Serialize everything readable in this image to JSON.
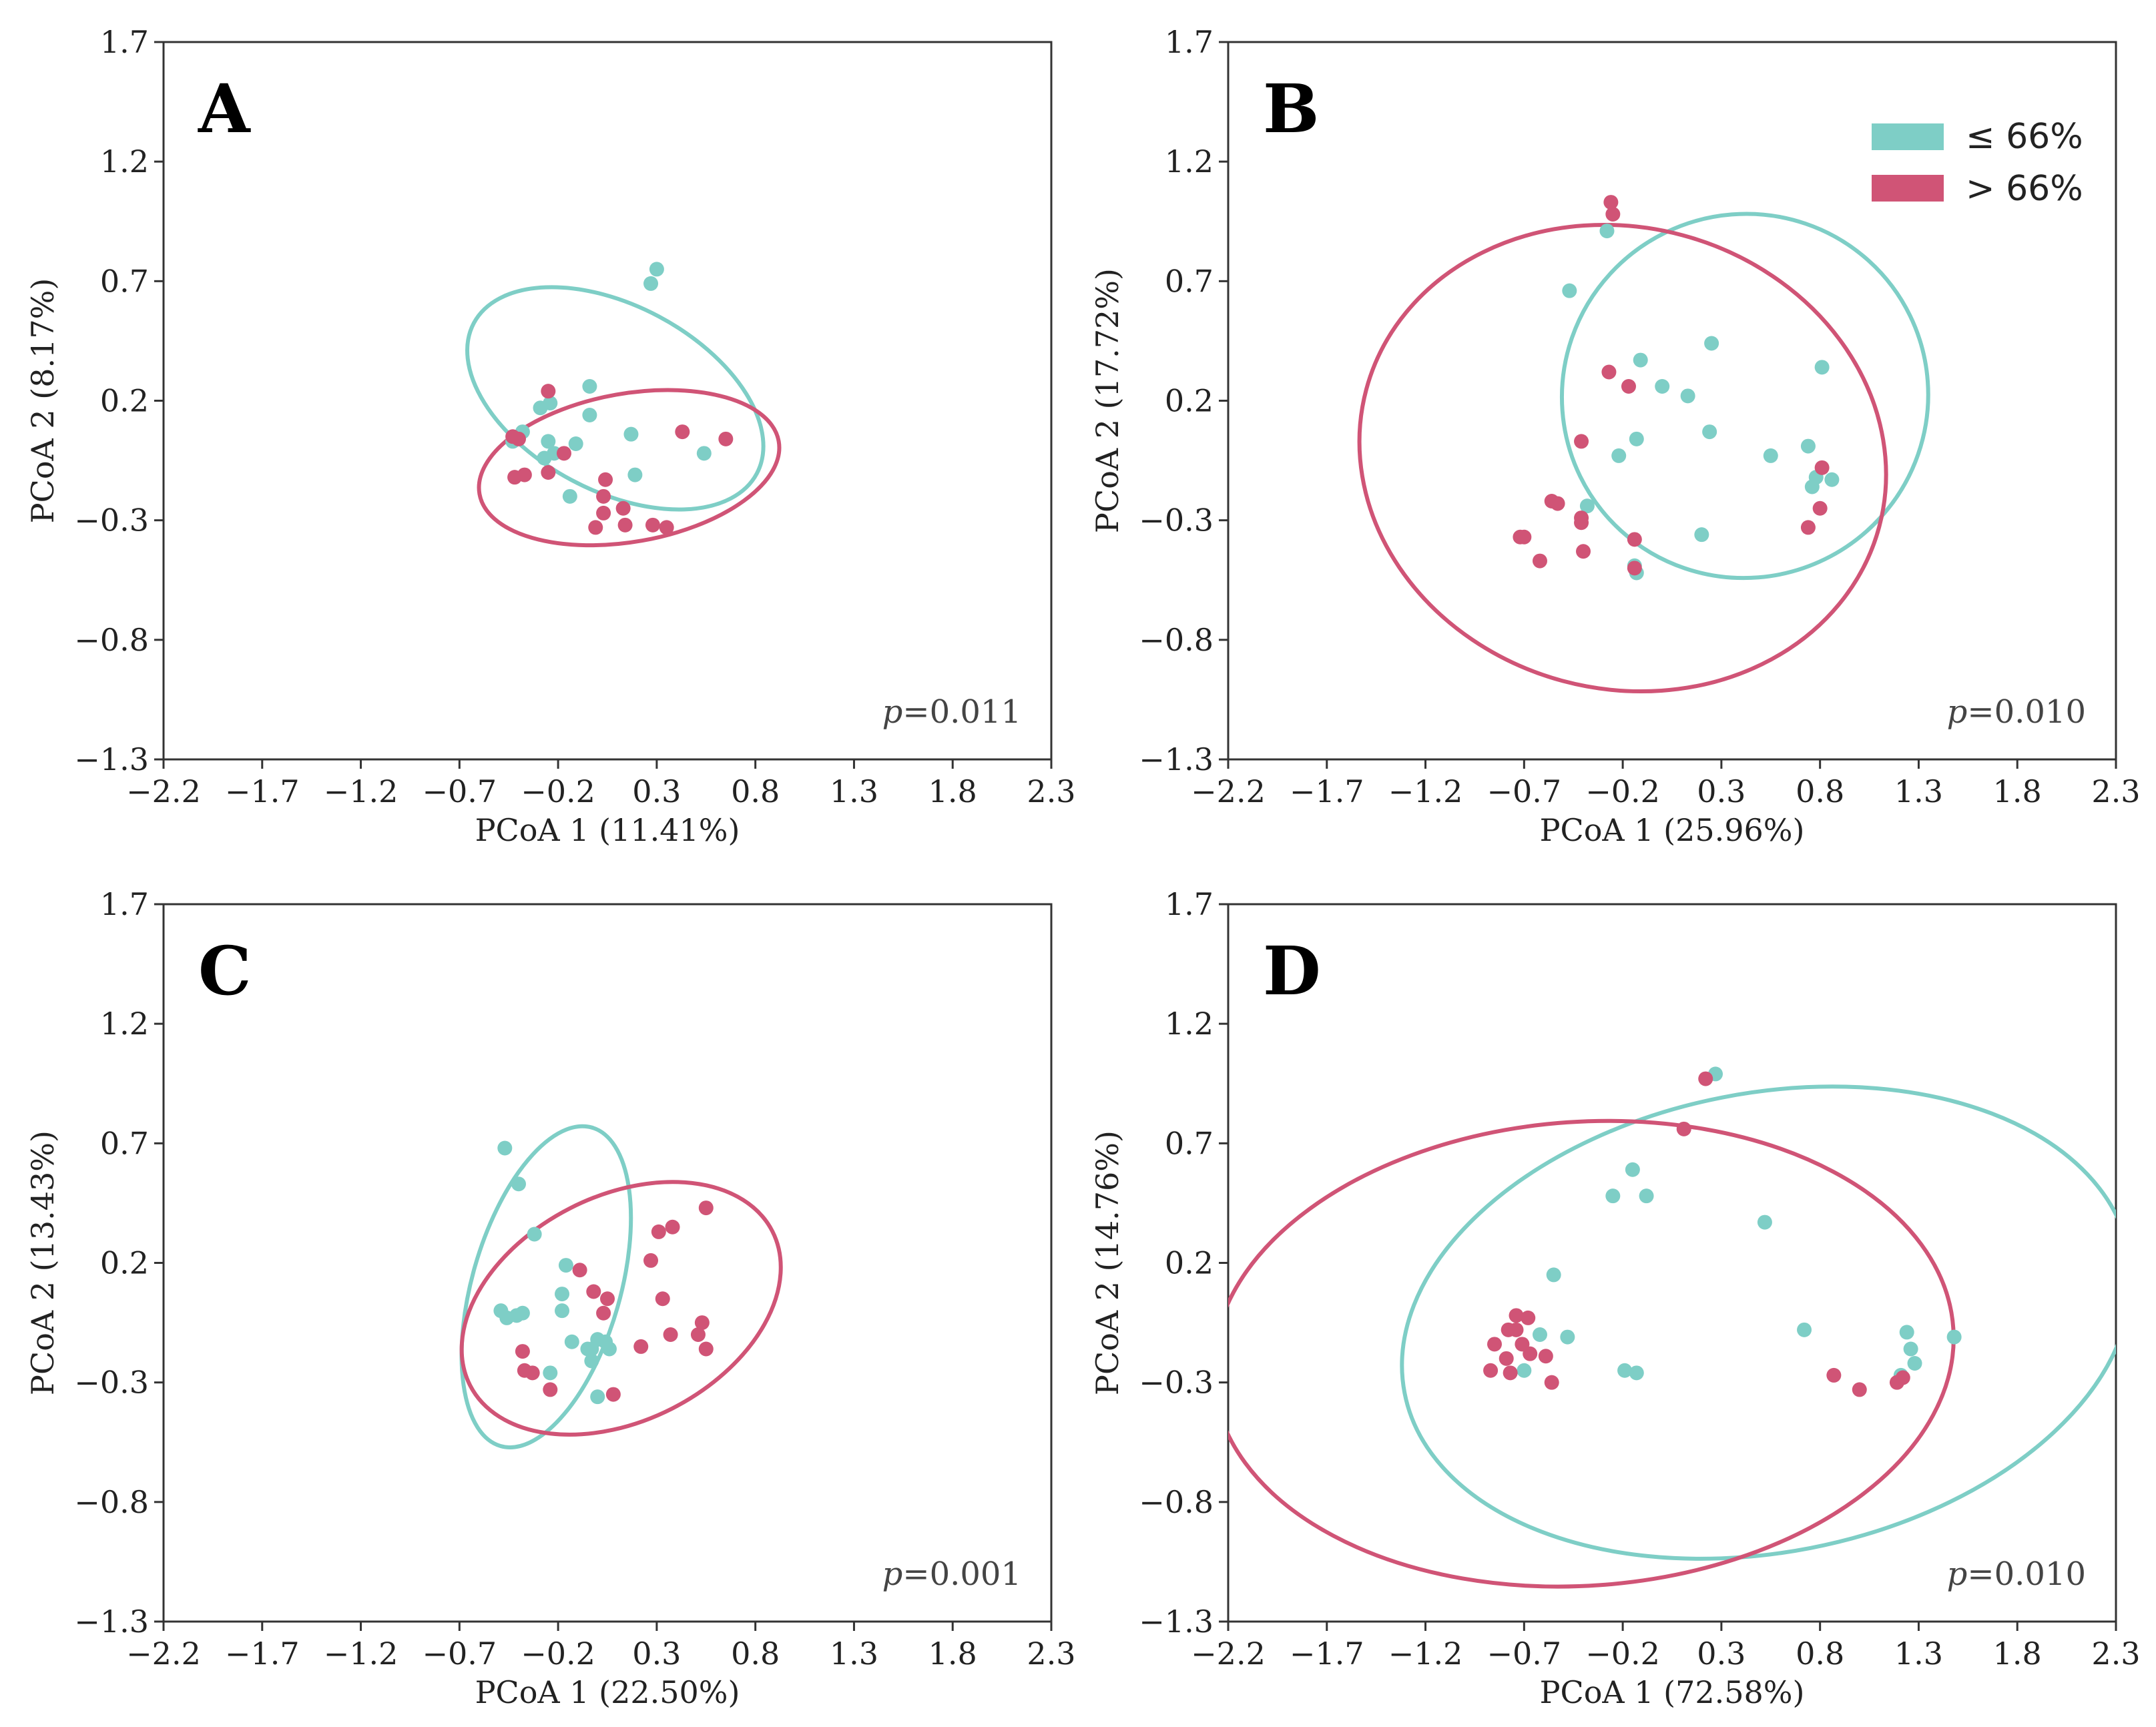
{
  "legend": [
    {
      "label": "≤ 66%",
      "color": "#7ECEC6"
    },
    {
      "label": "> 66%",
      "color": "#D05476"
    }
  ],
  "chart_data": [
    {
      "type": "scatter",
      "panel": "A",
      "xlabel": "PCoA 1 (11.41%)",
      "ylabel": "PCoA 2 (8.17%)",
      "xlim": [
        -2.2,
        2.3
      ],
      "ylim": [
        -1.3,
        1.7
      ],
      "xticks": [
        -2.2,
        -1.7,
        -1.2,
        -0.7,
        -0.2,
        0.3,
        0.8,
        1.3,
        1.8,
        2.3
      ],
      "yticks": [
        -1.3,
        -0.8,
        -0.3,
        0.2,
        0.7,
        1.2,
        1.7
      ],
      "annotation": "p=0.011",
      "series": [
        {
          "name": "≤ 66%",
          "points": [
            [
              0.3,
              0.75
            ],
            [
              0.27,
              0.69
            ],
            [
              -0.04,
              0.26
            ],
            [
              -0.29,
              0.17
            ],
            [
              -0.24,
              0.19
            ],
            [
              -0.04,
              0.14
            ],
            [
              -0.38,
              0.07
            ],
            [
              -0.43,
              0.03
            ],
            [
              -0.25,
              0.03
            ],
            [
              -0.11,
              0.02
            ],
            [
              0.17,
              0.06
            ],
            [
              0.54,
              -0.02
            ],
            [
              -0.27,
              -0.04
            ],
            [
              0.19,
              -0.11
            ],
            [
              -0.14,
              -0.2
            ],
            [
              -0.22,
              -0.02
            ]
          ],
          "ellipse": {
            "cx": 0.09,
            "cy": 0.21,
            "rx": 0.47,
            "ry": 0.67,
            "angle_deg": 62
          }
        },
        {
          "name": "> 66%",
          "points": [
            [
              -0.25,
              0.24
            ],
            [
              -0.43,
              0.05
            ],
            [
              -0.4,
              0.04
            ],
            [
              -0.17,
              -0.02
            ],
            [
              0.43,
              0.07
            ],
            [
              0.65,
              0.04
            ],
            [
              -0.42,
              -0.12
            ],
            [
              -0.37,
              -0.11
            ],
            [
              -0.25,
              -0.1
            ],
            [
              0.04,
              -0.13
            ],
            [
              0.03,
              -0.2
            ],
            [
              0.13,
              -0.25
            ],
            [
              0.03,
              -0.27
            ],
            [
              -0.01,
              -0.33
            ],
            [
              0.14,
              -0.32
            ],
            [
              0.28,
              -0.32
            ],
            [
              0.35,
              -0.33
            ]
          ],
          "ellipse": {
            "cx": 0.16,
            "cy": -0.08,
            "rx": 0.77,
            "ry": 0.31,
            "angle_deg": 10
          }
        }
      ]
    },
    {
      "type": "scatter",
      "panel": "B",
      "xlabel": "PCoA 1 (25.96%)",
      "ylabel": "PCoA 2 (17.72%)",
      "xlim": [
        -2.2,
        2.3
      ],
      "ylim": [
        -1.3,
        1.7
      ],
      "xticks": [
        -2.2,
        -1.7,
        -1.2,
        -0.7,
        -0.2,
        0.3,
        0.8,
        1.3,
        1.8,
        2.3
      ],
      "yticks": [
        -1.3,
        -0.8,
        -0.3,
        0.2,
        0.7,
        1.2,
        1.7
      ],
      "annotation": "p=0.010",
      "series": [
        {
          "name": "≤ 66%",
          "points": [
            [
              -0.28,
              0.91
            ],
            [
              -0.47,
              0.66
            ],
            [
              0.25,
              0.44
            ],
            [
              -0.11,
              0.37
            ],
            [
              0.0,
              0.26
            ],
            [
              0.13,
              0.22
            ],
            [
              0.81,
              0.34
            ],
            [
              -0.13,
              0.04
            ],
            [
              0.24,
              0.07
            ],
            [
              -0.22,
              -0.03
            ],
            [
              0.55,
              -0.03
            ],
            [
              0.74,
              0.01
            ],
            [
              0.78,
              -0.12
            ],
            [
              0.86,
              -0.13
            ],
            [
              0.76,
              -0.16
            ],
            [
              -0.38,
              -0.24
            ],
            [
              0.2,
              -0.36
            ],
            [
              -0.13,
              -0.52
            ],
            [
              -0.14,
              -0.49
            ]
          ],
          "ellipse": {
            "cx": 0.42,
            "cy": 0.22,
            "rx": 0.93,
            "ry": 0.76,
            "angle_deg": 26
          }
        },
        {
          "name": "> 66%",
          "points": [
            [
              -0.26,
              1.03
            ],
            [
              -0.25,
              0.98
            ],
            [
              -0.27,
              0.32
            ],
            [
              -0.17,
              0.26
            ],
            [
              -0.41,
              0.03
            ],
            [
              0.81,
              -0.08
            ],
            [
              -0.53,
              -0.23
            ],
            [
              -0.56,
              -0.22
            ],
            [
              -0.41,
              -0.29
            ],
            [
              -0.41,
              -0.31
            ],
            [
              0.8,
              -0.25
            ],
            [
              0.74,
              -0.33
            ],
            [
              -0.72,
              -0.37
            ],
            [
              -0.7,
              -0.37
            ],
            [
              -0.14,
              -0.38
            ],
            [
              -0.4,
              -0.43
            ],
            [
              -0.62,
              -0.47
            ],
            [
              -0.14,
              -0.5
            ]
          ],
          "ellipse": {
            "cx": -0.2,
            "cy": -0.04,
            "rx": 1.17,
            "ry": 1.11,
            "angle_deg": 75
          }
        }
      ]
    },
    {
      "type": "scatter",
      "panel": "C",
      "xlabel": "PCoA 1 (22.50%)",
      "ylabel": "PCoA 2 (13.43%)",
      "xlim": [
        -2.2,
        2.3
      ],
      "ylim": [
        -1.3,
        1.7
      ],
      "xticks": [
        -2.2,
        -1.7,
        -1.2,
        -0.7,
        -0.2,
        0.3,
        0.8,
        1.3,
        1.8,
        2.3
      ],
      "yticks": [
        -1.3,
        -0.8,
        -0.3,
        0.2,
        0.7,
        1.2,
        1.7
      ],
      "annotation": "p=0.001",
      "series": [
        {
          "name": "≤ 66%",
          "points": [
            [
              -0.47,
              0.68
            ],
            [
              -0.4,
              0.53
            ],
            [
              -0.32,
              0.32
            ],
            [
              -0.16,
              0.19
            ],
            [
              -0.18,
              0.07
            ],
            [
              -0.49,
              0.0
            ],
            [
              -0.46,
              -0.03
            ],
            [
              -0.41,
              -0.02
            ],
            [
              -0.38,
              -0.01
            ],
            [
              -0.18,
              0.0
            ],
            [
              -0.13,
              -0.13
            ],
            [
              -0.05,
              -0.16
            ],
            [
              -0.03,
              -0.16
            ],
            [
              0.0,
              -0.12
            ],
            [
              0.04,
              -0.13
            ],
            [
              0.06,
              -0.16
            ],
            [
              -0.03,
              -0.21
            ],
            [
              -0.24,
              -0.26
            ],
            [
              0.0,
              -0.36
            ]
          ],
          "ellipse": {
            "cx": -0.26,
            "cy": 0.1,
            "rx": 0.84,
            "ry": 0.31,
            "angle_deg": 74
          }
        },
        {
          "name": "> 66%",
          "points": [
            [
              0.55,
              0.43
            ],
            [
              0.31,
              0.33
            ],
            [
              0.38,
              0.35
            ],
            [
              0.27,
              0.21
            ],
            [
              -0.09,
              0.17
            ],
            [
              0.05,
              0.05
            ],
            [
              -0.02,
              0.08
            ],
            [
              0.33,
              0.05
            ],
            [
              0.22,
              -0.15
            ],
            [
              0.53,
              -0.05
            ],
            [
              0.51,
              -0.1
            ],
            [
              0.03,
              -0.01
            ],
            [
              0.55,
              -0.16
            ],
            [
              0.37,
              -0.1
            ],
            [
              -0.38,
              -0.17
            ],
            [
              -0.37,
              -0.25
            ],
            [
              -0.33,
              -0.26
            ],
            [
              -0.24,
              -0.33
            ],
            [
              0.08,
              -0.35
            ]
          ],
          "ellipse": {
            "cx": 0.12,
            "cy": 0.01,
            "rx": 0.86,
            "ry": 0.47,
            "angle_deg": 27
          }
        }
      ]
    },
    {
      "type": "scatter",
      "panel": "D",
      "xlabel": "PCoA 1 (72.58%)",
      "ylabel": "PCoA 2 (14.76%)",
      "xlim": [
        -2.2,
        2.3
      ],
      "ylim": [
        -1.3,
        1.7
      ],
      "xticks": [
        -2.2,
        -1.7,
        -1.2,
        -0.7,
        -0.2,
        0.3,
        0.8,
        1.3,
        1.8,
        2.3
      ],
      "yticks": [
        -1.3,
        -0.8,
        -0.3,
        0.2,
        0.7,
        1.2,
        1.7
      ],
      "annotation": "p=0.010",
      "series": [
        {
          "name": "≤ 66%",
          "points": [
            [
              0.27,
              0.99
            ],
            [
              -0.15,
              0.59
            ],
            [
              -0.25,
              0.48
            ],
            [
              -0.08,
              0.48
            ],
            [
              0.52,
              0.37
            ],
            [
              -0.55,
              0.15
            ],
            [
              0.72,
              -0.08
            ],
            [
              -0.62,
              -0.1
            ],
            [
              -0.48,
              -0.11
            ],
            [
              -0.19,
              -0.25
            ],
            [
              -0.13,
              -0.26
            ],
            [
              -0.7,
              -0.25
            ],
            [
              1.24,
              -0.09
            ],
            [
              1.26,
              -0.16
            ],
            [
              1.48,
              -0.11
            ],
            [
              1.21,
              -0.27
            ],
            [
              1.28,
              -0.22
            ]
          ],
          "ellipse": {
            "cx": 0.53,
            "cy": -0.05,
            "rx": 1.87,
            "ry": 0.96,
            "angle_deg": 11
          }
        },
        {
          "name": "> 66%",
          "points": [
            [
              0.22,
              0.97
            ],
            [
              0.11,
              0.76
            ],
            [
              -0.74,
              -0.02
            ],
            [
              -0.68,
              -0.03
            ],
            [
              -0.78,
              -0.08
            ],
            [
              -0.74,
              -0.08
            ],
            [
              -0.85,
              -0.14
            ],
            [
              -0.71,
              -0.14
            ],
            [
              -0.67,
              -0.18
            ],
            [
              -0.79,
              -0.2
            ],
            [
              -0.59,
              -0.19
            ],
            [
              -0.77,
              -0.26
            ],
            [
              -0.87,
              -0.25
            ],
            [
              -0.56,
              -0.3
            ],
            [
              0.87,
              -0.27
            ],
            [
              1.0,
              -0.33
            ],
            [
              1.19,
              -0.3
            ],
            [
              1.22,
              -0.28
            ]
          ],
          "ellipse": {
            "cx": -0.4,
            "cy": -0.18,
            "rx": 1.88,
            "ry": 0.97,
            "angle_deg": 4
          }
        }
      ]
    }
  ]
}
